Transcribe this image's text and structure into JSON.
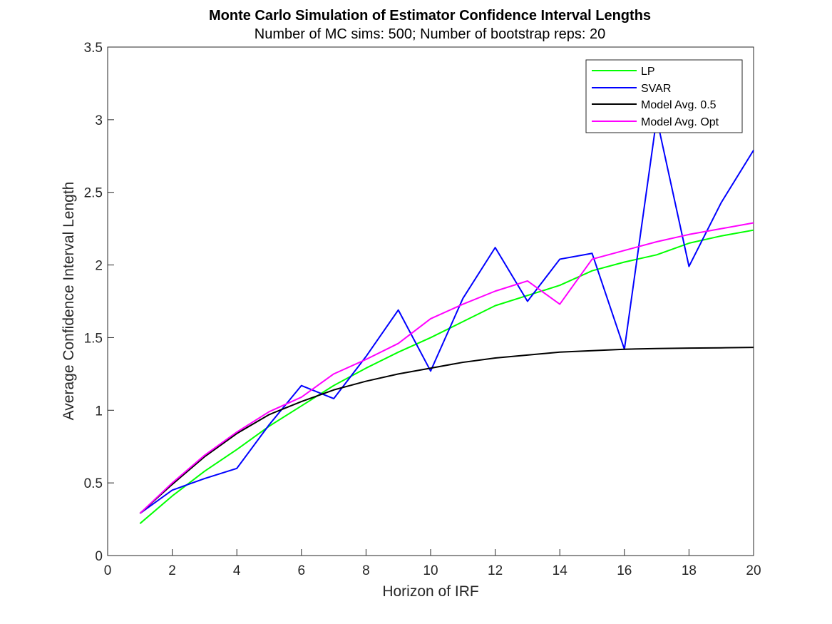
{
  "chart_data": {
    "type": "line",
    "title": "Monte Carlo Simulation of Estimator Confidence Interval Lengths",
    "subtitle": "Number of MC sims: 500; Number of bootstrap reps: 20",
    "xlabel": "Horizon of IRF",
    "ylabel": "Average Confidence Interval Length",
    "xlim": [
      0,
      20
    ],
    "ylim": [
      0,
      3.5
    ],
    "xticks": [
      "0",
      "2",
      "4",
      "6",
      "8",
      "10",
      "12",
      "14",
      "16",
      "18",
      "20"
    ],
    "yticks": [
      "0",
      "0.5",
      "1",
      "1.5",
      "2",
      "2.5",
      "3",
      "3.5"
    ],
    "grid": false,
    "legend_position": "top-right",
    "x": [
      1,
      2,
      3,
      4,
      5,
      6,
      7,
      8,
      9,
      10,
      11,
      12,
      13,
      14,
      15,
      16,
      17,
      18,
      19,
      20
    ],
    "series": [
      {
        "name": "LP",
        "color": "#00ff00",
        "values": [
          0.22,
          0.41,
          0.58,
          0.73,
          0.89,
          1.03,
          1.17,
          1.29,
          1.4,
          1.5,
          1.61,
          1.72,
          1.79,
          1.86,
          1.96,
          2.02,
          2.07,
          2.15,
          2.2,
          2.24
        ]
      },
      {
        "name": "SVAR",
        "color": "#0000ff",
        "values": [
          0.29,
          0.45,
          0.53,
          0.6,
          0.9,
          1.17,
          1.08,
          1.37,
          1.69,
          1.27,
          1.77,
          2.12,
          1.75,
          2.04,
          2.08,
          1.42,
          3.01,
          1.99,
          2.43,
          2.79
        ]
      },
      {
        "name": "Model Avg. 0.5",
        "color": "#000000",
        "values": [
          0.29,
          0.49,
          0.68,
          0.84,
          0.97,
          1.06,
          1.14,
          1.2,
          1.25,
          1.29,
          1.33,
          1.36,
          1.38,
          1.4,
          1.41,
          1.42,
          1.425,
          1.428,
          1.43,
          1.433
        ]
      },
      {
        "name": "Model Avg. Opt",
        "color": "#ff00ff",
        "values": [
          0.29,
          0.5,
          0.69,
          0.85,
          0.99,
          1.09,
          1.25,
          1.35,
          1.46,
          1.63,
          1.73,
          1.82,
          1.89,
          1.73,
          2.04,
          2.1,
          2.16,
          2.21,
          2.25,
          2.29
        ]
      }
    ]
  }
}
